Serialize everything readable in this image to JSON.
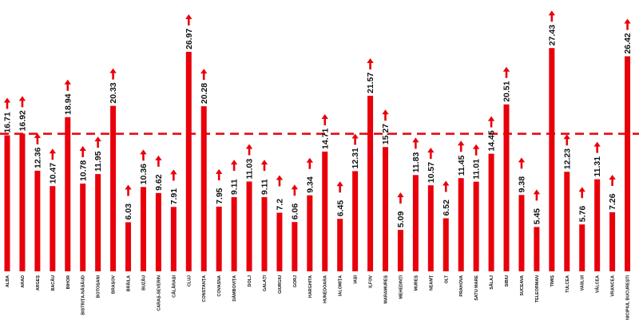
{
  "chart_data": {
    "type": "bar",
    "categories": [
      "ALBA",
      "ARAD",
      "ARGEȘ",
      "BACĂU",
      "BIHOR",
      "BISTRIȚA-NĂSĂUD",
      "BOTOȘANI",
      "BRAȘOV",
      "BRĂILA",
      "BUZĂU",
      "CARAȘ-SEVERIN",
      "CĂLĂRAȘI",
      "CLUJ",
      "CONSTANȚA",
      "COVASNA",
      "DÂMBOVIȚA",
      "DOLJ",
      "GALAȚI",
      "GIURGIU",
      "GORJ",
      "HARGHITA",
      "HUNEDOARA",
      "IALOMIȚA",
      "IAȘI",
      "ILFOV",
      "MARAMUREȘ",
      "MEHEDINȚI",
      "MUREȘ",
      "NEAMȚ",
      "OLT",
      "PRAHOVA",
      "SATU MARE",
      "SĂLAJ",
      "SIBIU",
      "SUCEAVA",
      "TELEORMAN",
      "TIMIȘ",
      "TULCEA",
      "VASLUI",
      "VÂLCEA",
      "VRANCEA",
      "MUNICIPIUL BUCUREȘTI"
    ],
    "values": [
      16.71,
      16.92,
      12.36,
      10.47,
      18.94,
      10.78,
      11.95,
      20.33,
      6.03,
      10.36,
      9.62,
      7.91,
      26.97,
      20.28,
      7.95,
      9.11,
      11.03,
      9.11,
      7.2,
      6.06,
      9.34,
      14.71,
      6.45,
      12.31,
      21.57,
      15.27,
      5.09,
      11.83,
      10.57,
      6.52,
      11.45,
      11.01,
      14.45,
      20.51,
      9.38,
      5.45,
      27.43,
      12.23,
      5.76,
      11.31,
      7.26,
      26.42
    ],
    "value_labels": [
      "16.71",
      "16.92",
      "12.36",
      "10.47",
      "18.94",
      "10.78",
      "11.95",
      "20.33",
      "6.03",
      "10.36",
      "9.62",
      "7.91",
      "26.97",
      "20.28",
      "7.95",
      "9.11",
      "11.03",
      "9.11",
      "7.2",
      "6.06",
      "9.34",
      "14.71",
      "6.45",
      "12.31",
      "21.57",
      "15.27",
      "5.09",
      "11.83",
      "10.57",
      "6.52",
      "11.45",
      "11.01",
      "14.45",
      "20.51",
      "9.38",
      "5.45",
      "27.43",
      "12.23",
      "5.76",
      "11.31",
      "7.26",
      "26.42"
    ],
    "threshold": 16.9,
    "ylim": [
      0,
      30
    ],
    "bar_color": "#e8000b",
    "threshold_color": "#e8000b",
    "grid": false,
    "title": "",
    "xlabel": "",
    "ylabel": ""
  }
}
